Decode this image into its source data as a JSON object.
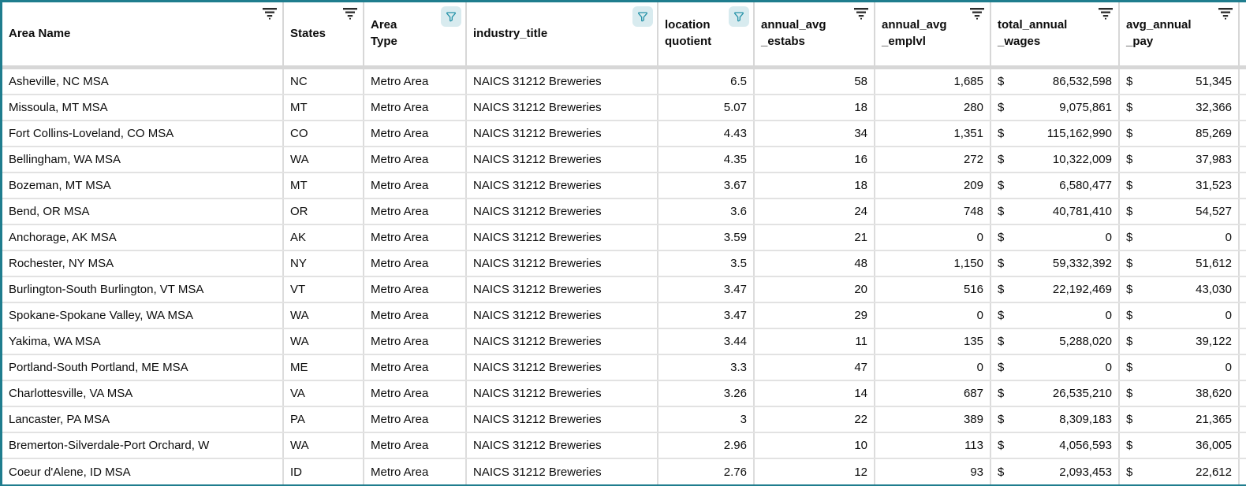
{
  "table": {
    "currency_symbol": "$",
    "accent_teal": "#1f7d8e",
    "filter_active_bg": "#d8ebef",
    "filter_active_stroke": "#2793a9"
  },
  "columns": [
    {
      "key": "area_name",
      "label": "Area Name",
      "icon": "filter-lines"
    },
    {
      "key": "states",
      "label": "States",
      "icon": "filter-lines"
    },
    {
      "key": "area_type",
      "label": "Area\nType",
      "icon": "funnel-active"
    },
    {
      "key": "industry_title",
      "label": "industry_title",
      "icon": "funnel-active"
    },
    {
      "key": "location_quotient",
      "label": "location\nquotient",
      "icon": "funnel-active"
    },
    {
      "key": "annual_avg_estabs",
      "label": "annual_avg\n_estabs",
      "icon": "filter-lines"
    },
    {
      "key": "annual_avg_emplvl",
      "label": "annual_avg\n_emplvl",
      "icon": "filter-lines"
    },
    {
      "key": "total_annual_wages",
      "label": "total_annual\n_wages",
      "icon": "filter-lines"
    },
    {
      "key": "avg_annual_pay",
      "label": "avg_annual\n_pay",
      "icon": "filter-lines"
    }
  ],
  "rows": [
    {
      "area_name": "Asheville, NC MSA",
      "states": "NC",
      "area_type": "Metro Area",
      "industry_title": "NAICS 31212 Breweries",
      "location_quotient": "6.5",
      "annual_avg_estabs": "58",
      "annual_avg_emplvl": "1,685",
      "total_annual_wages": "86,532,598",
      "avg_annual_pay": "51,345"
    },
    {
      "area_name": "Missoula, MT MSA",
      "states": "MT",
      "area_type": "Metro Area",
      "industry_title": "NAICS 31212 Breweries",
      "location_quotient": "5.07",
      "annual_avg_estabs": "18",
      "annual_avg_emplvl": "280",
      "total_annual_wages": "9,075,861",
      "avg_annual_pay": "32,366"
    },
    {
      "area_name": "Fort Collins-Loveland, CO MSA",
      "states": "CO",
      "area_type": "Metro Area",
      "industry_title": "NAICS 31212 Breweries",
      "location_quotient": "4.43",
      "annual_avg_estabs": "34",
      "annual_avg_emplvl": "1,351",
      "total_annual_wages": "115,162,990",
      "avg_annual_pay": "85,269"
    },
    {
      "area_name": "Bellingham, WA MSA",
      "states": "WA",
      "area_type": "Metro Area",
      "industry_title": "NAICS 31212 Breweries",
      "location_quotient": "4.35",
      "annual_avg_estabs": "16",
      "annual_avg_emplvl": "272",
      "total_annual_wages": "10,322,009",
      "avg_annual_pay": "37,983"
    },
    {
      "area_name": "Bozeman, MT MSA",
      "states": "MT",
      "area_type": "Metro Area",
      "industry_title": "NAICS 31212 Breweries",
      "location_quotient": "3.67",
      "annual_avg_estabs": "18",
      "annual_avg_emplvl": "209",
      "total_annual_wages": "6,580,477",
      "avg_annual_pay": "31,523"
    },
    {
      "area_name": "Bend, OR MSA",
      "states": "OR",
      "area_type": "Metro Area",
      "industry_title": "NAICS 31212 Breweries",
      "location_quotient": "3.6",
      "annual_avg_estabs": "24",
      "annual_avg_emplvl": "748",
      "total_annual_wages": "40,781,410",
      "avg_annual_pay": "54,527"
    },
    {
      "area_name": "Anchorage, AK MSA",
      "states": "AK",
      "area_type": "Metro Area",
      "industry_title": "NAICS 31212 Breweries",
      "location_quotient": "3.59",
      "annual_avg_estabs": "21",
      "annual_avg_emplvl": "0",
      "total_annual_wages": "0",
      "avg_annual_pay": "0"
    },
    {
      "area_name": "Rochester, NY MSA",
      "states": "NY",
      "area_type": "Metro Area",
      "industry_title": "NAICS 31212 Breweries",
      "location_quotient": "3.5",
      "annual_avg_estabs": "48",
      "annual_avg_emplvl": "1,150",
      "total_annual_wages": "59,332,392",
      "avg_annual_pay": "51,612"
    },
    {
      "area_name": "Burlington-South Burlington, VT MSA",
      "states": "VT",
      "area_type": "Metro Area",
      "industry_title": "NAICS 31212 Breweries",
      "location_quotient": "3.47",
      "annual_avg_estabs": "20",
      "annual_avg_emplvl": "516",
      "total_annual_wages": "22,192,469",
      "avg_annual_pay": "43,030"
    },
    {
      "area_name": "Spokane-Spokane Valley, WA MSA",
      "states": "WA",
      "area_type": "Metro Area",
      "industry_title": "NAICS 31212 Breweries",
      "location_quotient": "3.47",
      "annual_avg_estabs": "29",
      "annual_avg_emplvl": "0",
      "total_annual_wages": "0",
      "avg_annual_pay": "0"
    },
    {
      "area_name": "Yakima, WA MSA",
      "states": "WA",
      "area_type": "Metro Area",
      "industry_title": "NAICS 31212 Breweries",
      "location_quotient": "3.44",
      "annual_avg_estabs": "11",
      "annual_avg_emplvl": "135",
      "total_annual_wages": "5,288,020",
      "avg_annual_pay": "39,122"
    },
    {
      "area_name": "Portland-South Portland, ME MSA",
      "states": "ME",
      "area_type": "Metro Area",
      "industry_title": "NAICS 31212 Breweries",
      "location_quotient": "3.3",
      "annual_avg_estabs": "47",
      "annual_avg_emplvl": "0",
      "total_annual_wages": "0",
      "avg_annual_pay": "0"
    },
    {
      "area_name": "Charlottesville, VA MSA",
      "states": "VA",
      "area_type": "Metro Area",
      "industry_title": "NAICS 31212 Breweries",
      "location_quotient": "3.26",
      "annual_avg_estabs": "14",
      "annual_avg_emplvl": "687",
      "total_annual_wages": "26,535,210",
      "avg_annual_pay": "38,620"
    },
    {
      "area_name": "Lancaster, PA MSA",
      "states": "PA",
      "area_type": "Metro Area",
      "industry_title": "NAICS 31212 Breweries",
      "location_quotient": "3",
      "annual_avg_estabs": "22",
      "annual_avg_emplvl": "389",
      "total_annual_wages": "8,309,183",
      "avg_annual_pay": "21,365"
    },
    {
      "area_name": "Bremerton-Silverdale-Port Orchard, W",
      "states": "WA",
      "area_type": "Metro Area",
      "industry_title": "NAICS 31212 Breweries",
      "location_quotient": "2.96",
      "annual_avg_estabs": "10",
      "annual_avg_emplvl": "113",
      "total_annual_wages": "4,056,593",
      "avg_annual_pay": "36,005"
    },
    {
      "area_name": "Coeur d'Alene, ID MSA",
      "states": "ID",
      "area_type": "Metro Area",
      "industry_title": "NAICS 31212 Breweries",
      "location_quotient": "2.76",
      "annual_avg_estabs": "12",
      "annual_avg_emplvl": "93",
      "total_annual_wages": "2,093,453",
      "avg_annual_pay": "22,612"
    }
  ]
}
